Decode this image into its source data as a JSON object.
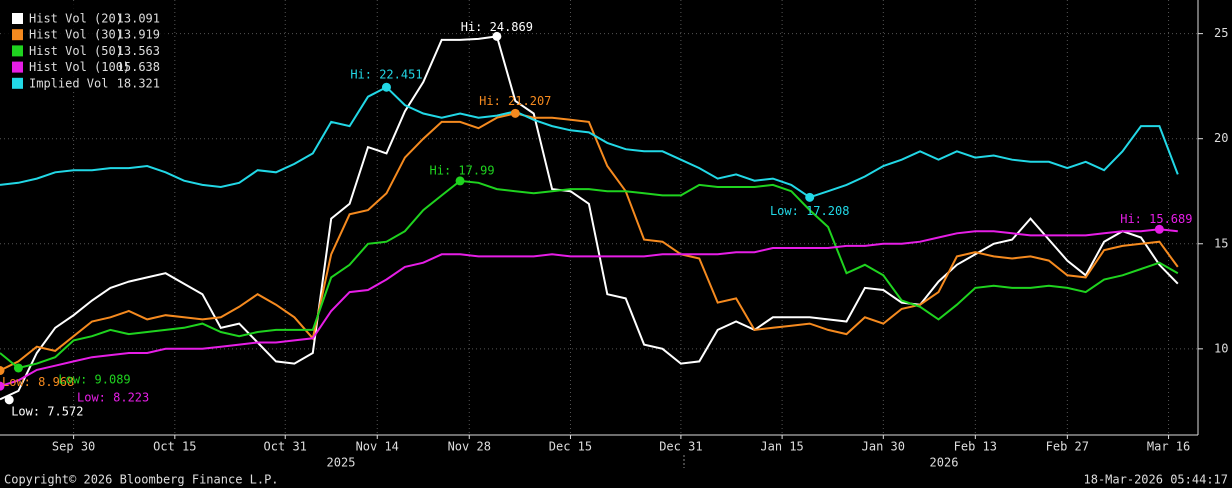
{
  "chart_data": {
    "type": "line",
    "x": [
      0,
      2,
      4,
      6,
      8,
      10,
      12,
      14,
      16,
      18,
      20,
      22,
      24,
      26,
      28,
      30,
      32,
      34,
      36,
      38,
      40,
      42,
      44,
      46,
      48,
      50,
      52,
      54,
      56,
      58,
      60,
      62,
      64,
      66,
      68,
      70,
      72,
      74,
      76,
      78,
      80,
      82,
      84,
      86,
      88,
      90,
      92,
      94,
      96,
      98,
      100,
      102,
      104,
      106,
      108,
      110,
      112,
      114,
      116,
      118,
      120,
      122,
      124,
      126,
      128
    ],
    "series": [
      {
        "name": "Hist Vol (20)",
        "legend_value": "13.091",
        "color": "#ffffff",
        "values": [
          7.6,
          8.0,
          9.8,
          11.0,
          11.6,
          12.3,
          12.9,
          13.2,
          13.4,
          13.6,
          13.1,
          12.6,
          11.0,
          11.2,
          10.3,
          9.4,
          9.3,
          9.8,
          16.2,
          16.9,
          19.6,
          19.3,
          21.3,
          22.7,
          24.7,
          24.7,
          24.75,
          24.87,
          21.8,
          21.2,
          17.6,
          17.5,
          16.9,
          12.6,
          12.4,
          10.2,
          10.0,
          9.3,
          9.4,
          10.9,
          11.3,
          10.9,
          11.5,
          11.5,
          11.5,
          11.4,
          11.3,
          12.9,
          12.8,
          12.2,
          12.1,
          13.2,
          14.0,
          14.5,
          15.0,
          15.2,
          16.2,
          15.2,
          14.2,
          13.5,
          15.1,
          15.6,
          15.3,
          14.0,
          13.1
        ]
      },
      {
        "name": "Hist Vol (30)",
        "legend_value": "13.919",
        "color": "#f58a1f",
        "values": [
          8.97,
          9.4,
          10.1,
          9.9,
          10.6,
          11.3,
          11.5,
          11.8,
          11.4,
          11.6,
          11.5,
          11.4,
          11.5,
          12.0,
          12.6,
          12.1,
          11.5,
          10.5,
          14.5,
          16.4,
          16.6,
          17.4,
          19.1,
          20.0,
          20.8,
          20.8,
          20.5,
          21.0,
          21.21,
          21.0,
          21.0,
          20.9,
          20.8,
          18.7,
          17.5,
          15.2,
          15.1,
          14.5,
          14.3,
          12.2,
          12.4,
          10.9,
          11.0,
          11.1,
          11.2,
          10.9,
          10.7,
          11.5,
          11.2,
          11.9,
          12.1,
          12.7,
          14.4,
          14.6,
          14.4,
          14.3,
          14.4,
          14.2,
          13.5,
          13.4,
          14.7,
          14.9,
          15.0,
          15.1,
          13.9
        ]
      },
      {
        "name": "Hist Vol (50)",
        "legend_value": "13.563",
        "color": "#1fd31f",
        "values": [
          9.8,
          9.09,
          9.3,
          9.6,
          10.4,
          10.6,
          10.9,
          10.7,
          10.8,
          10.9,
          11.0,
          11.2,
          10.8,
          10.6,
          10.8,
          10.9,
          10.9,
          10.9,
          13.4,
          14.0,
          15.0,
          15.1,
          15.6,
          16.6,
          17.3,
          17.99,
          17.9,
          17.6,
          17.5,
          17.4,
          17.5,
          17.6,
          17.6,
          17.5,
          17.5,
          17.4,
          17.3,
          17.3,
          17.8,
          17.7,
          17.7,
          17.7,
          17.8,
          17.5,
          16.6,
          15.8,
          13.6,
          14.0,
          13.5,
          12.3,
          12.0,
          11.4,
          12.1,
          12.9,
          13.0,
          12.9,
          12.9,
          13.0,
          12.9,
          12.7,
          13.3,
          13.5,
          13.8,
          14.1,
          13.6
        ]
      },
      {
        "name": "Hist Vol (100)",
        "legend_value": "15.638",
        "color": "#e61ee6",
        "values": [
          8.22,
          8.5,
          9.0,
          9.2,
          9.4,
          9.6,
          9.7,
          9.8,
          9.8,
          10.0,
          10.0,
          10.0,
          10.1,
          10.2,
          10.3,
          10.3,
          10.4,
          10.5,
          11.8,
          12.7,
          12.8,
          13.3,
          13.9,
          14.1,
          14.5,
          14.5,
          14.4,
          14.4,
          14.4,
          14.4,
          14.5,
          14.4,
          14.4,
          14.4,
          14.4,
          14.4,
          14.5,
          14.5,
          14.5,
          14.5,
          14.6,
          14.6,
          14.8,
          14.8,
          14.8,
          14.8,
          14.9,
          14.9,
          15.0,
          15.0,
          15.1,
          15.3,
          15.5,
          15.6,
          15.6,
          15.5,
          15.4,
          15.4,
          15.4,
          15.4,
          15.5,
          15.6,
          15.6,
          15.69,
          15.6
        ]
      },
      {
        "name": "Implied Vol",
        "legend_value": "18.321",
        "color": "#22d8e6",
        "values": [
          17.8,
          17.9,
          18.1,
          18.4,
          18.5,
          18.5,
          18.6,
          18.6,
          18.7,
          18.4,
          18.0,
          17.8,
          17.7,
          17.9,
          18.5,
          18.4,
          18.8,
          19.3,
          20.8,
          20.6,
          22.0,
          22.45,
          21.6,
          21.2,
          21.0,
          21.2,
          21.0,
          21.1,
          21.3,
          20.9,
          20.6,
          20.4,
          20.3,
          19.8,
          19.5,
          19.4,
          19.4,
          19.0,
          18.6,
          18.1,
          18.3,
          18.0,
          18.1,
          17.8,
          17.21,
          17.5,
          17.8,
          18.2,
          18.7,
          19.0,
          19.4,
          19.0,
          19.4,
          19.1,
          19.2,
          19.0,
          18.9,
          18.9,
          18.6,
          18.9,
          18.5,
          19.4,
          20.6,
          20.6,
          18.3
        ]
      }
    ],
    "annotations": [
      {
        "text": "Hi: 24.869",
        "x": 54,
        "y": 24.869,
        "color": "#ffffff"
      },
      {
        "text": "Hi: 22.451",
        "x": 42,
        "y": 22.451,
        "color": "#22d8e6"
      },
      {
        "text": "Hi: 21.207",
        "x": 56,
        "y": 21.207,
        "color": "#f58a1f"
      },
      {
        "text": "Hi: 17.99",
        "x": 50,
        "y": 17.99,
        "color": "#1fd31f"
      },
      {
        "text": "Low: 17.208",
        "x": 88,
        "y": 17.208,
        "color": "#22d8e6"
      },
      {
        "text": "Hi: 15.689",
        "x": 126,
        "y": 15.689,
        "color": "#e61ee6"
      },
      {
        "text": "Low: 8.968",
        "x": 0,
        "y": 8.968,
        "color": "#f58a1f"
      },
      {
        "text": "Low: 9.089",
        "x": 2,
        "y": 9.089,
        "color": "#1fd31f"
      },
      {
        "text": "Low: 8.223",
        "x": 0,
        "y": 8.223,
        "color": "#e61ee6"
      },
      {
        "text": "Low: 7.572",
        "x": 1,
        "y": 7.572,
        "color": "#ffffff"
      }
    ],
    "xlim": [
      0,
      130.2
    ],
    "xticks": [
      {
        "value": 8,
        "label": "Sep 30"
      },
      {
        "value": 19,
        "label": "Oct 15"
      },
      {
        "value": 31,
        "label": "Oct 31"
      },
      {
        "value": 41,
        "label": "Nov 14"
      },
      {
        "value": 51,
        "label": "Nov 28"
      },
      {
        "value": 62,
        "label": "Dec 15"
      },
      {
        "value": 74,
        "label": "Dec 31"
      },
      {
        "value": 85,
        "label": "Jan 15"
      },
      {
        "value": 96,
        "label": "Jan 30"
      },
      {
        "value": 106,
        "label": "Feb 13"
      },
      {
        "value": 116,
        "label": "Feb 27"
      },
      {
        "value": 127,
        "label": "Mar 16"
      }
    ],
    "year_labels": [
      "2025",
      "2026"
    ],
    "ylim": [
      5.9,
      26.6
    ],
    "yticks": [
      10,
      15,
      20,
      25
    ],
    "grid": true,
    "copyright": "Copyright© 2026 Bloomberg Finance L.P.",
    "timestamp": "18-Mar-2026 05:44:17"
  }
}
